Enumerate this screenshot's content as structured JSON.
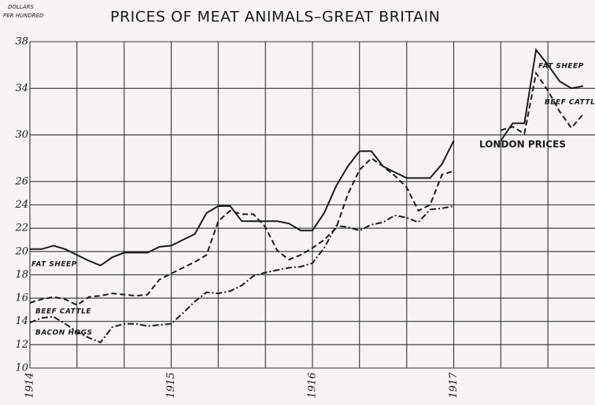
{
  "chart_data": {
    "type": "line",
    "title": "PRICES OF MEAT ANIMALS–GREAT BRITAIN",
    "y_label": [
      "DOLLARS",
      "PER HUNDRED"
    ],
    "x": [
      1914,
      1914.083,
      1914.167,
      1914.25,
      1914.333,
      1914.417,
      1914.5,
      1914.583,
      1914.667,
      1914.75,
      1914.833,
      1914.917,
      1915,
      1915.083,
      1915.167,
      1915.25,
      1915.333,
      1915.417,
      1915.5,
      1915.583,
      1915.667,
      1915.75,
      1915.833,
      1915.917,
      1916,
      1916.083,
      1916.167,
      1916.25,
      1916.333,
      1916.417,
      1916.5,
      1916.583,
      1916.667,
      1916.75,
      1916.833,
      1916.917,
      1917,
      1917.083,
      1917.167,
      1917.25,
      1917.333,
      1917.417,
      1917.5,
      1917.583,
      1917.667,
      1917.75,
      1917.833,
      1917.917
    ],
    "series": [
      {
        "name": "FAT SHEEP",
        "color": "#1a1a1a",
        "style": "solid",
        "values": [
          20.2,
          20.2,
          20.5,
          20.2,
          19.7,
          19.2,
          18.8,
          19.5,
          19.9,
          19.9,
          19.9,
          20.4,
          20.5,
          21,
          21.5,
          23.3,
          23.9,
          23.9,
          22.6,
          22.6,
          22.6,
          22.6,
          22.4,
          21.8,
          21.8,
          23.3,
          25.6,
          27.3,
          28.6,
          28.6,
          27.3,
          26.8,
          26.3,
          26.3,
          26.3,
          27.5,
          29.5,
          null,
          null,
          null,
          29.5,
          31,
          31,
          37.3,
          36,
          34.6,
          34,
          34.2
        ]
      },
      {
        "name": "BEEF CATTLE",
        "color": "#1a1a1a",
        "style": "dashed",
        "values": [
          15.6,
          15.9,
          16.1,
          15.9,
          15.4,
          16.1,
          16.2,
          16.4,
          16.3,
          16.2,
          16.3,
          17.6,
          18.1,
          18.6,
          19.1,
          19.7,
          22.6,
          23.5,
          23.2,
          23.2,
          22.1,
          20.1,
          19.3,
          19.7,
          20.3,
          21,
          22,
          24.9,
          27,
          28,
          27.3,
          26.5,
          25.5,
          23.5,
          24,
          26.6,
          26.9,
          null,
          null,
          null,
          30.4,
          30.7,
          30.1,
          35.3,
          33.8,
          32,
          30.6,
          31.8
        ]
      },
      {
        "name": "BACON HOGS",
        "color": "#1a1a1a",
        "style": "dashdot",
        "values": [
          13.9,
          14.3,
          14.4,
          13.8,
          13.1,
          12.6,
          12.2,
          13.5,
          13.8,
          13.8,
          13.6,
          13.7,
          13.8,
          14.7,
          15.7,
          16.5,
          16.4,
          16.6,
          17.1,
          17.9,
          18.2,
          18.4,
          18.6,
          18.7,
          19,
          20.3,
          22.2,
          22.1,
          21.8,
          22.3,
          22.5,
          23.1,
          22.9,
          22.5,
          23.6,
          23.7,
          23.9,
          null,
          null,
          null,
          null,
          null,
          null,
          null,
          null,
          null,
          null,
          null
        ]
      }
    ],
    "annotations": [
      "FAT SHEEP",
      "BEEF CATTLE",
      "LONDON PRICES"
    ],
    "xlim": [
      1914,
      1918
    ],
    "xticks": [
      1914,
      1915,
      1916,
      1917
    ],
    "xgrid": [
      1914.333,
      1914.667,
      1915.333,
      1915.667,
      1916.333,
      1916.667,
      1917.333,
      1917.667
    ],
    "ylim": [
      10,
      38
    ],
    "yticks": [
      10,
      12,
      14,
      16,
      18,
      20,
      22,
      24,
      26,
      30,
      34,
      38
    ],
    "grid": true
  }
}
